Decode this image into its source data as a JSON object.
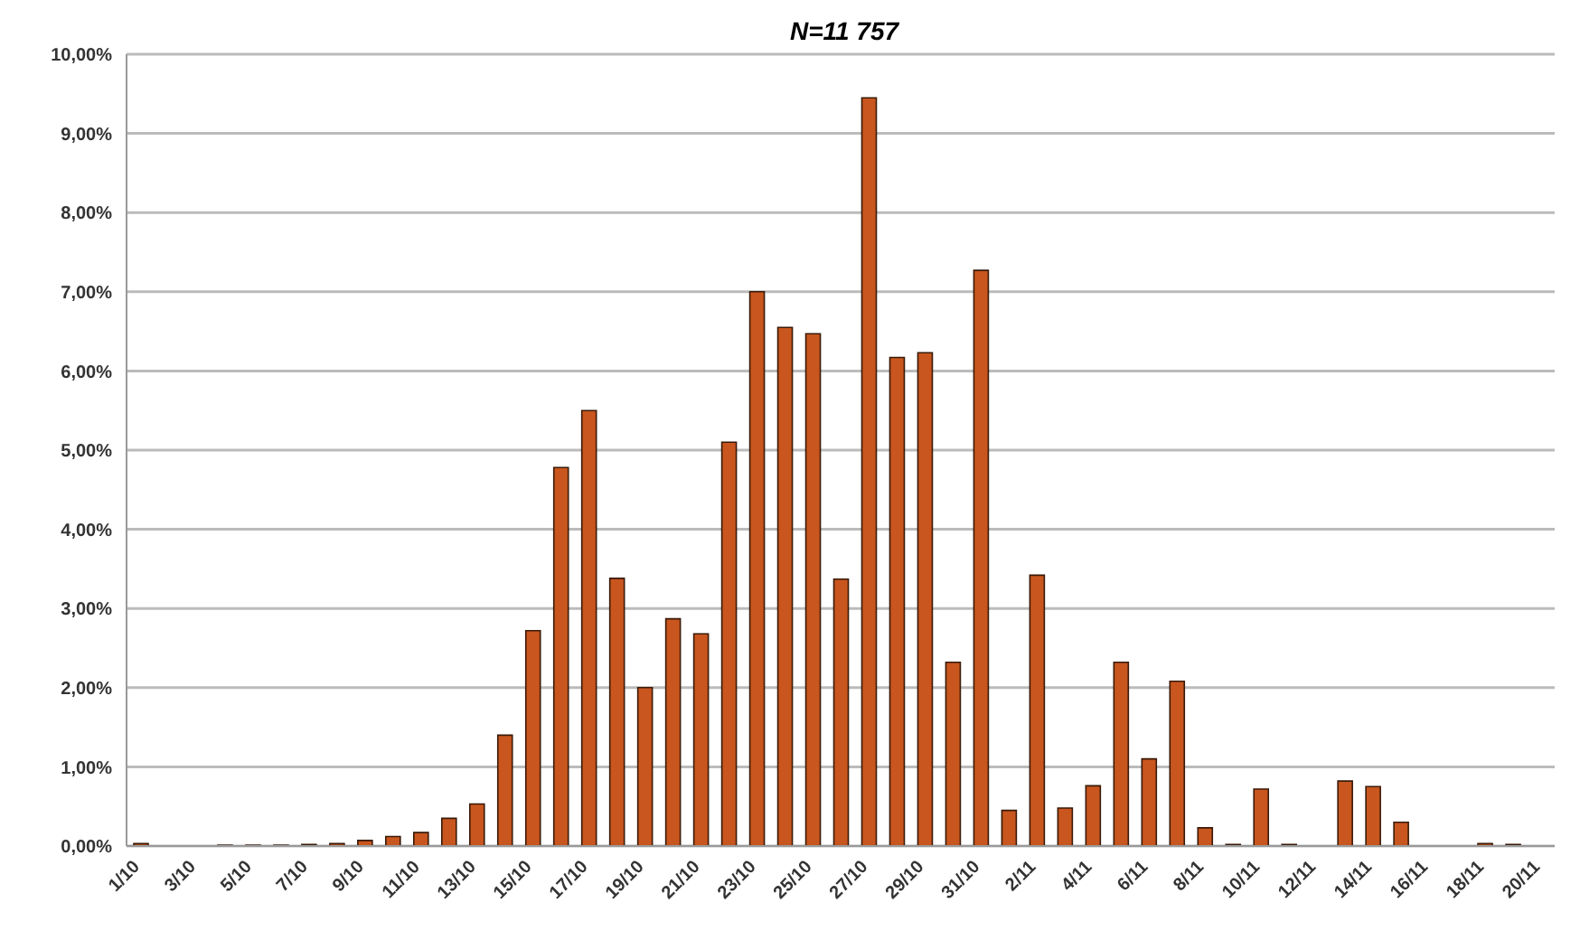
{
  "chart_data": {
    "type": "bar",
    "title": "N=11 757",
    "categories": [
      "1/10",
      null,
      "3/10",
      null,
      "5/10",
      null,
      "7/10",
      null,
      "9/10",
      null,
      "11/10",
      null,
      "13/10",
      null,
      "15/10",
      null,
      "17/10",
      null,
      "19/10",
      null,
      "21/10",
      null,
      "23/10",
      null,
      "25/10",
      null,
      "27/10",
      null,
      "29/10",
      null,
      "31/10",
      null,
      "2/11",
      null,
      "4/11",
      null,
      "6/11",
      null,
      "8/11",
      null,
      "10/11",
      null,
      "12/11",
      null,
      "14/11",
      null,
      "16/11",
      null,
      "18/11",
      null,
      "20/11"
    ],
    "values": [
      0.03,
      0,
      0,
      0.01,
      0.01,
      0.01,
      0.02,
      0.03,
      0.07,
      0.12,
      0.17,
      0.35,
      0.53,
      1.4,
      2.72,
      4.78,
      5.5,
      3.38,
      2.0,
      2.87,
      2.68,
      5.1,
      7.0,
      6.55,
      6.47,
      3.37,
      9.45,
      6.17,
      6.23,
      2.32,
      7.27,
      0.45,
      3.42,
      0.48,
      0.76,
      2.32,
      1.1,
      2.08,
      0.23,
      0.02,
      0.72,
      0.02,
      0,
      0.82,
      0.75,
      0.3,
      0,
      0,
      0.03,
      0.02,
      null
    ],
    "color": "#c8561e",
    "ylim": [
      0,
      10
    ],
    "yticks": [
      {
        "value": 0,
        "label": "0,00%"
      },
      {
        "value": 1,
        "label": "1,00%"
      },
      {
        "value": 2,
        "label": "2,00%"
      },
      {
        "value": 3,
        "label": "3,00%"
      },
      {
        "value": 4,
        "label": "4,00%"
      },
      {
        "value": 5,
        "label": "5,00%"
      },
      {
        "value": 6,
        "label": "6,00%"
      },
      {
        "value": 7,
        "label": "7,00%"
      },
      {
        "value": 8,
        "label": "8,00%"
      },
      {
        "value": 9,
        "label": "9,00%"
      },
      {
        "value": 10,
        "label": "10,00%"
      }
    ],
    "grid": "y"
  }
}
